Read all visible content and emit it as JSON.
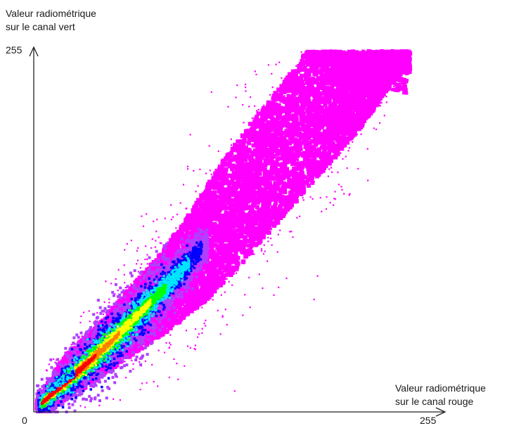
{
  "chart_data": {
    "type": "heatmap",
    "title": "",
    "ylabel": [
      "Valeur radiométrique",
      "sur le canal vert"
    ],
    "xlabel": [
      "Valeur radiométrique",
      "sur le canal rouge"
    ],
    "xlim": [
      0,
      255
    ],
    "ylim": [
      0,
      255
    ],
    "x_ticks": [
      "0",
      "255"
    ],
    "y_ticks": [
      "255"
    ],
    "grid": false,
    "legend": "none",
    "colormap": [
      "#ff00ff",
      "#b040ff",
      "#0000ff",
      "#00e5ff",
      "#00ff00",
      "#ffff00",
      "#ff8000",
      "#ff0000"
    ],
    "density_core": {
      "description_ratio_band": "green vs red radiometric values, dense diagonal band",
      "ridge": [
        [
          5,
          6
        ],
        [
          15,
          16
        ],
        [
          30,
          30
        ],
        [
          50,
          50
        ],
        [
          70,
          72
        ],
        [
          90,
          94
        ],
        [
          110,
          118
        ]
      ],
      "envelope_upper": [
        [
          2,
          8
        ],
        [
          20,
          40
        ],
        [
          40,
          60
        ],
        [
          60,
          85
        ],
        [
          80,
          110
        ],
        [
          100,
          140
        ],
        [
          120,
          175
        ],
        [
          140,
          205
        ],
        [
          160,
          232
        ],
        [
          175,
          255
        ],
        [
          235,
          255
        ]
      ],
      "envelope_lower": [
        [
          10,
          2
        ],
        [
          30,
          15
        ],
        [
          50,
          30
        ],
        [
          70,
          45
        ],
        [
          90,
          60
        ],
        [
          110,
          78
        ],
        [
          130,
          100
        ],
        [
          150,
          125
        ],
        [
          170,
          150
        ],
        [
          190,
          175
        ],
        [
          210,
          200
        ],
        [
          235,
          240
        ]
      ]
    }
  }
}
